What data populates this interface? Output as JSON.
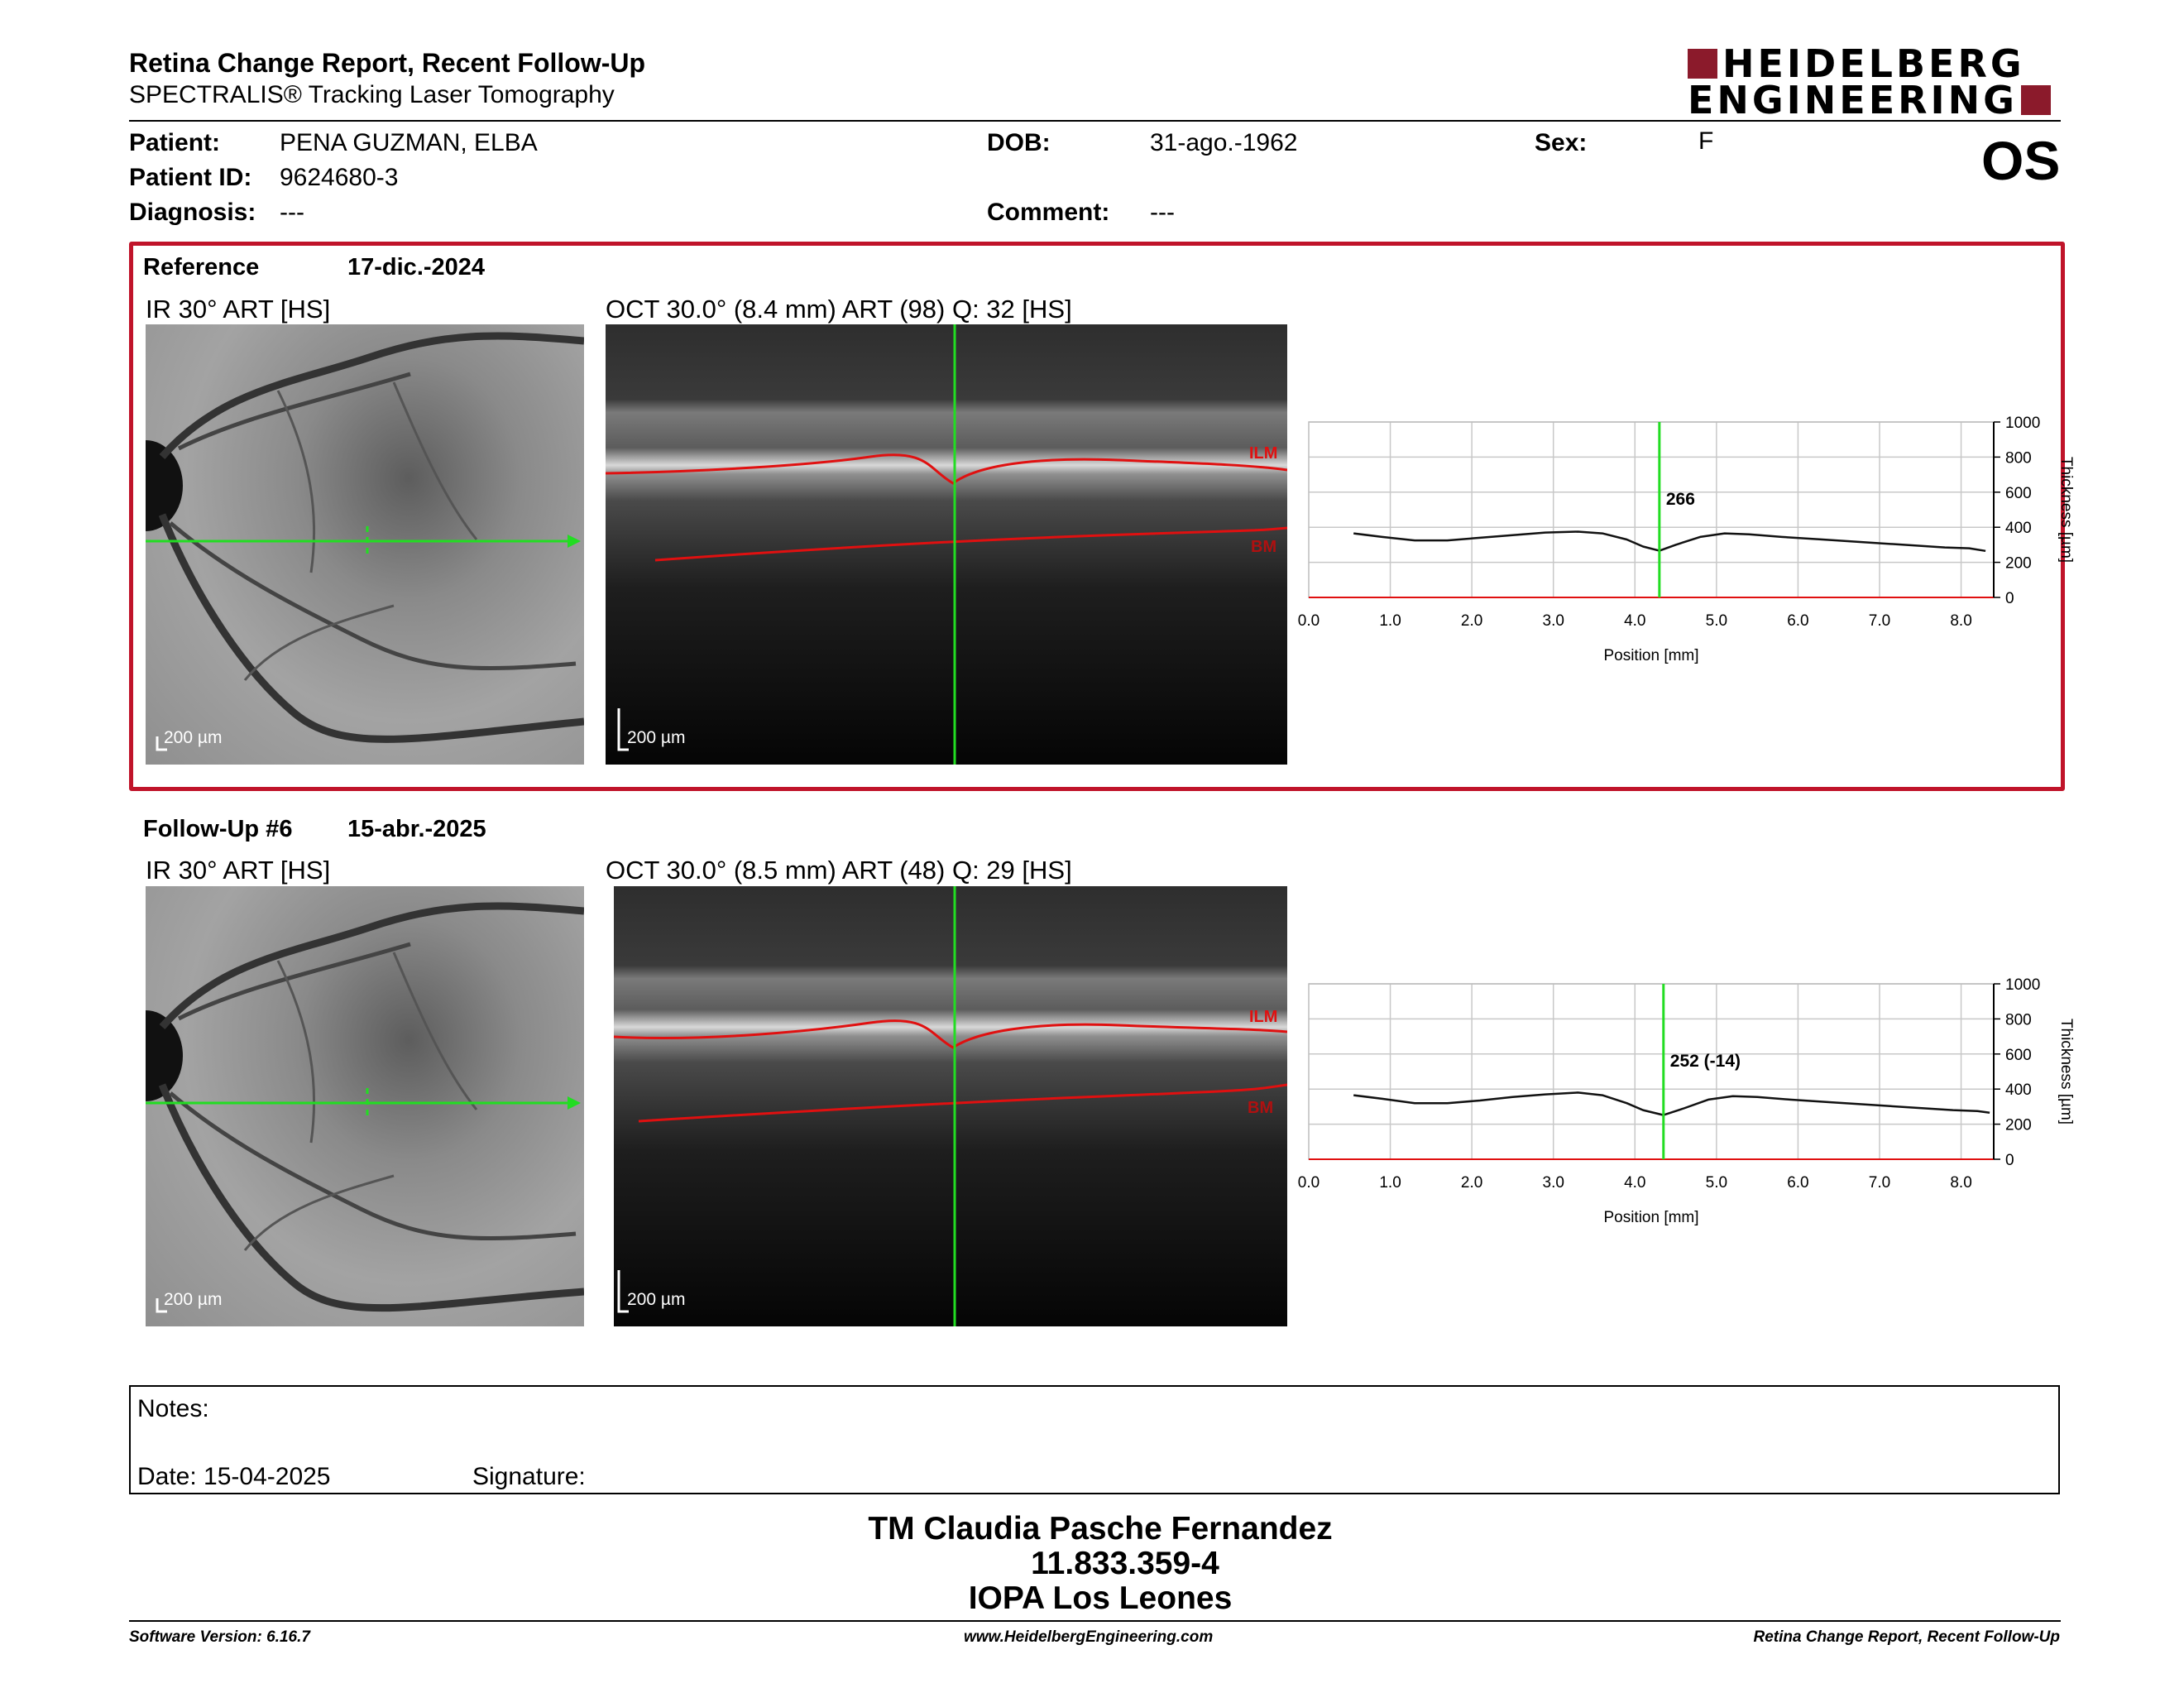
{
  "header": {
    "title": "Retina Change Report, Recent Follow-Up",
    "subtitle": "SPECTRALIS® Tracking Laser Tomography",
    "logo_line1": "HEIDELBERG",
    "logo_line2": "ENGINEERING",
    "eye": "OS"
  },
  "patient": {
    "patient_label": "Patient:",
    "patient_value": "PENA GUZMAN, ELBA",
    "id_label": "Patient ID:",
    "id_value": "9624680-3",
    "diagnosis_label": "Diagnosis:",
    "diagnosis_value": "---",
    "dob_label": "DOB:",
    "dob_value": "31-ago.-1962",
    "comment_label": "Comment:",
    "comment_value": "---",
    "sex_label": "Sex:",
    "sex_value": "F"
  },
  "reference": {
    "label": "Reference",
    "date": "17-dic.-2024",
    "ir_caption": "IR 30° ART [HS]",
    "oct_caption": "OCT 30.0° (8.4 mm) ART (98) Q: 32 [HS]",
    "scale": "200 µm",
    "ilm": "ILM",
    "bm": "BM",
    "readout": "266"
  },
  "followup": {
    "label": "Follow-Up #6",
    "date": "15-abr.-2025",
    "ir_caption": "IR 30° ART [HS]",
    "oct_caption": "OCT 30.0° (8.5 mm) ART (48) Q: 29 [HS]",
    "scale": "200 µm",
    "ilm": "ILM",
    "bm": "BM",
    "readout": "252 (-14)"
  },
  "chart_data": [
    {
      "type": "line",
      "xlabel": "Position [mm]",
      "ylabel": "Thickness [µm]",
      "xlim": [
        0.0,
        8.4
      ],
      "ylim": [
        0,
        1000
      ],
      "x_ticks": [
        "0.0",
        "1.0",
        "2.0",
        "3.0",
        "4.0",
        "5.0",
        "6.0",
        "7.0",
        "8.0"
      ],
      "y_ticks": [
        "0",
        "200",
        "400",
        "600",
        "800",
        "1000"
      ],
      "grid": true,
      "marker_x": 4.3,
      "marker_label": "266",
      "series": [
        {
          "x": [
            0.55,
            0.9,
            1.3,
            1.7,
            2.1,
            2.5,
            2.9,
            3.3,
            3.6,
            3.9,
            4.1,
            4.3,
            4.5,
            4.8,
            5.1,
            5.4,
            5.8,
            6.3,
            6.8,
            7.3,
            7.8,
            8.1,
            8.3
          ],
          "y": [
            365,
            345,
            325,
            325,
            340,
            355,
            370,
            375,
            365,
            330,
            290,
            266,
            300,
            345,
            365,
            360,
            345,
            330,
            315,
            300,
            285,
            280,
            265
          ]
        }
      ]
    },
    {
      "type": "line",
      "xlabel": "Position [mm]",
      "ylabel": "Thickness [µm]",
      "xlim": [
        0.0,
        8.4
      ],
      "ylim": [
        0,
        1000
      ],
      "x_ticks": [
        "0.0",
        "1.0",
        "2.0",
        "3.0",
        "4.0",
        "5.0",
        "6.0",
        "7.0",
        "8.0"
      ],
      "y_ticks": [
        "0",
        "200",
        "400",
        "600",
        "800",
        "1000"
      ],
      "grid": true,
      "marker_x": 4.35,
      "marker_label": "252 (-14)",
      "series": [
        {
          "x": [
            0.55,
            0.9,
            1.3,
            1.7,
            2.1,
            2.5,
            2.9,
            3.3,
            3.6,
            3.9,
            4.1,
            4.35,
            4.6,
            4.9,
            5.2,
            5.5,
            5.9,
            6.4,
            6.9,
            7.4,
            7.9,
            8.2,
            8.35
          ],
          "y": [
            365,
            345,
            320,
            320,
            335,
            355,
            370,
            380,
            365,
            320,
            280,
            252,
            290,
            340,
            360,
            355,
            340,
            325,
            310,
            295,
            280,
            275,
            265
          ]
        }
      ]
    }
  ],
  "notes": {
    "notes_label": "Notes:",
    "date_label": "Date: 15-04-2025",
    "signature_label": "Signature:"
  },
  "footer": {
    "line1": "TM Claudia Pasche Fernandez",
    "line2": "11.833.359-4",
    "line3": "IOPA Los Leones",
    "software": "Software Version: 6.16.7",
    "website": "www.HeidelbergEngineering.com",
    "report": "Retina Change Report, Recent Follow-Up"
  },
  "colors": {
    "brand": "#8b1a2b",
    "reference_frame": "#c0142a",
    "scan_line": "#22dd22",
    "layer_line": "#e01010"
  }
}
